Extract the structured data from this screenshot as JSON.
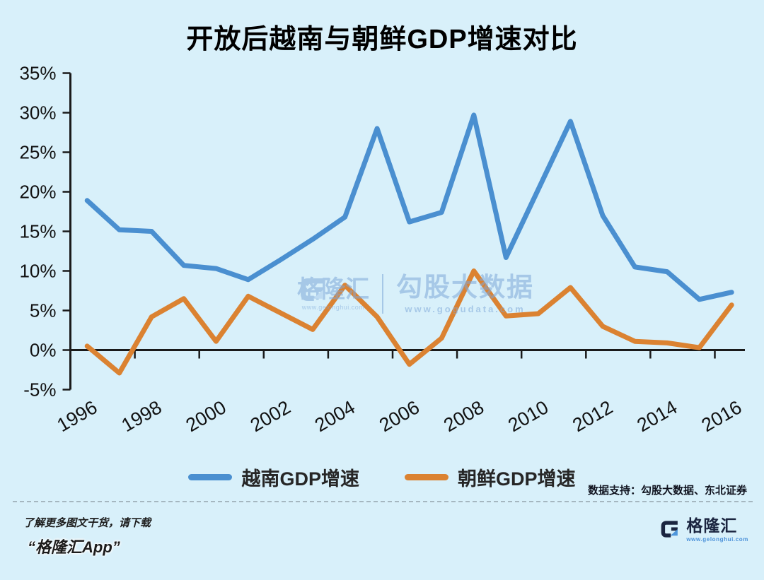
{
  "title": "开放后越南与朝鲜GDP增速对比",
  "chart_data": {
    "type": "line",
    "x": [
      1996,
      1997,
      1998,
      1999,
      2000,
      2001,
      2002,
      2003,
      2004,
      2005,
      2006,
      2007,
      2008,
      2009,
      2010,
      2011,
      2012,
      2013,
      2014,
      2015,
      2016
    ],
    "x_tick_labels": [
      "1996",
      "1998",
      "2000",
      "2002",
      "2004",
      "2006",
      "2008",
      "2010",
      "2012",
      "2014",
      "2016"
    ],
    "series": [
      {
        "name": "越南GDP增速",
        "color": "#4A8FD0",
        "values": [
          18.9,
          15.2,
          15.0,
          10.7,
          10.3,
          8.9,
          11.4,
          14.0,
          16.8,
          28.0,
          16.2,
          17.4,
          29.7,
          11.7,
          20.3,
          28.9,
          17.0,
          10.5,
          9.9,
          6.4,
          7.3
        ]
      },
      {
        "name": "朝鲜GDP增速",
        "color": "#DB8231",
        "values": [
          0.5,
          -2.9,
          4.2,
          6.5,
          1.1,
          6.8,
          4.7,
          2.6,
          8.2,
          4.2,
          -1.8,
          1.5,
          10.0,
          4.3,
          4.6,
          7.9,
          3.0,
          1.1,
          0.9,
          0.3,
          5.7
        ]
      }
    ],
    "ylim": [
      -5,
      35
    ],
    "y_tick_step": 5,
    "y_tick_labels": [
      "-5%",
      "0%",
      "5%",
      "10%",
      "15%",
      "20%",
      "25%",
      "30%",
      "35%"
    ],
    "unit": "%",
    "grid": false,
    "legend_position": "bottom",
    "title": "开放后越南与朝鲜GDP增速对比"
  },
  "legend": {
    "vietnam": "越南GDP增速",
    "north_korea": "朝鲜GDP增速"
  },
  "watermark": {
    "brand": "格隆汇",
    "brand_url": "www.gelonghui.com",
    "product": "勾股大数据",
    "product_url": "www.gogudata.com"
  },
  "credits": {
    "data_support": "数据支持：勾股大数据、东北证券"
  },
  "footer": {
    "promo_line1": "了解更多图文干货，请下载",
    "promo_line2": "“格隆汇App”",
    "logo_text": "格隆汇",
    "logo_url": "www.gelonghui.com"
  },
  "colors": {
    "background": "#D8F0FA",
    "axis": "#1a1a1a",
    "vietnam_line": "#4A8FD0",
    "north_korea_line": "#DB8231",
    "watermark_blue": "#7FA8D9"
  }
}
